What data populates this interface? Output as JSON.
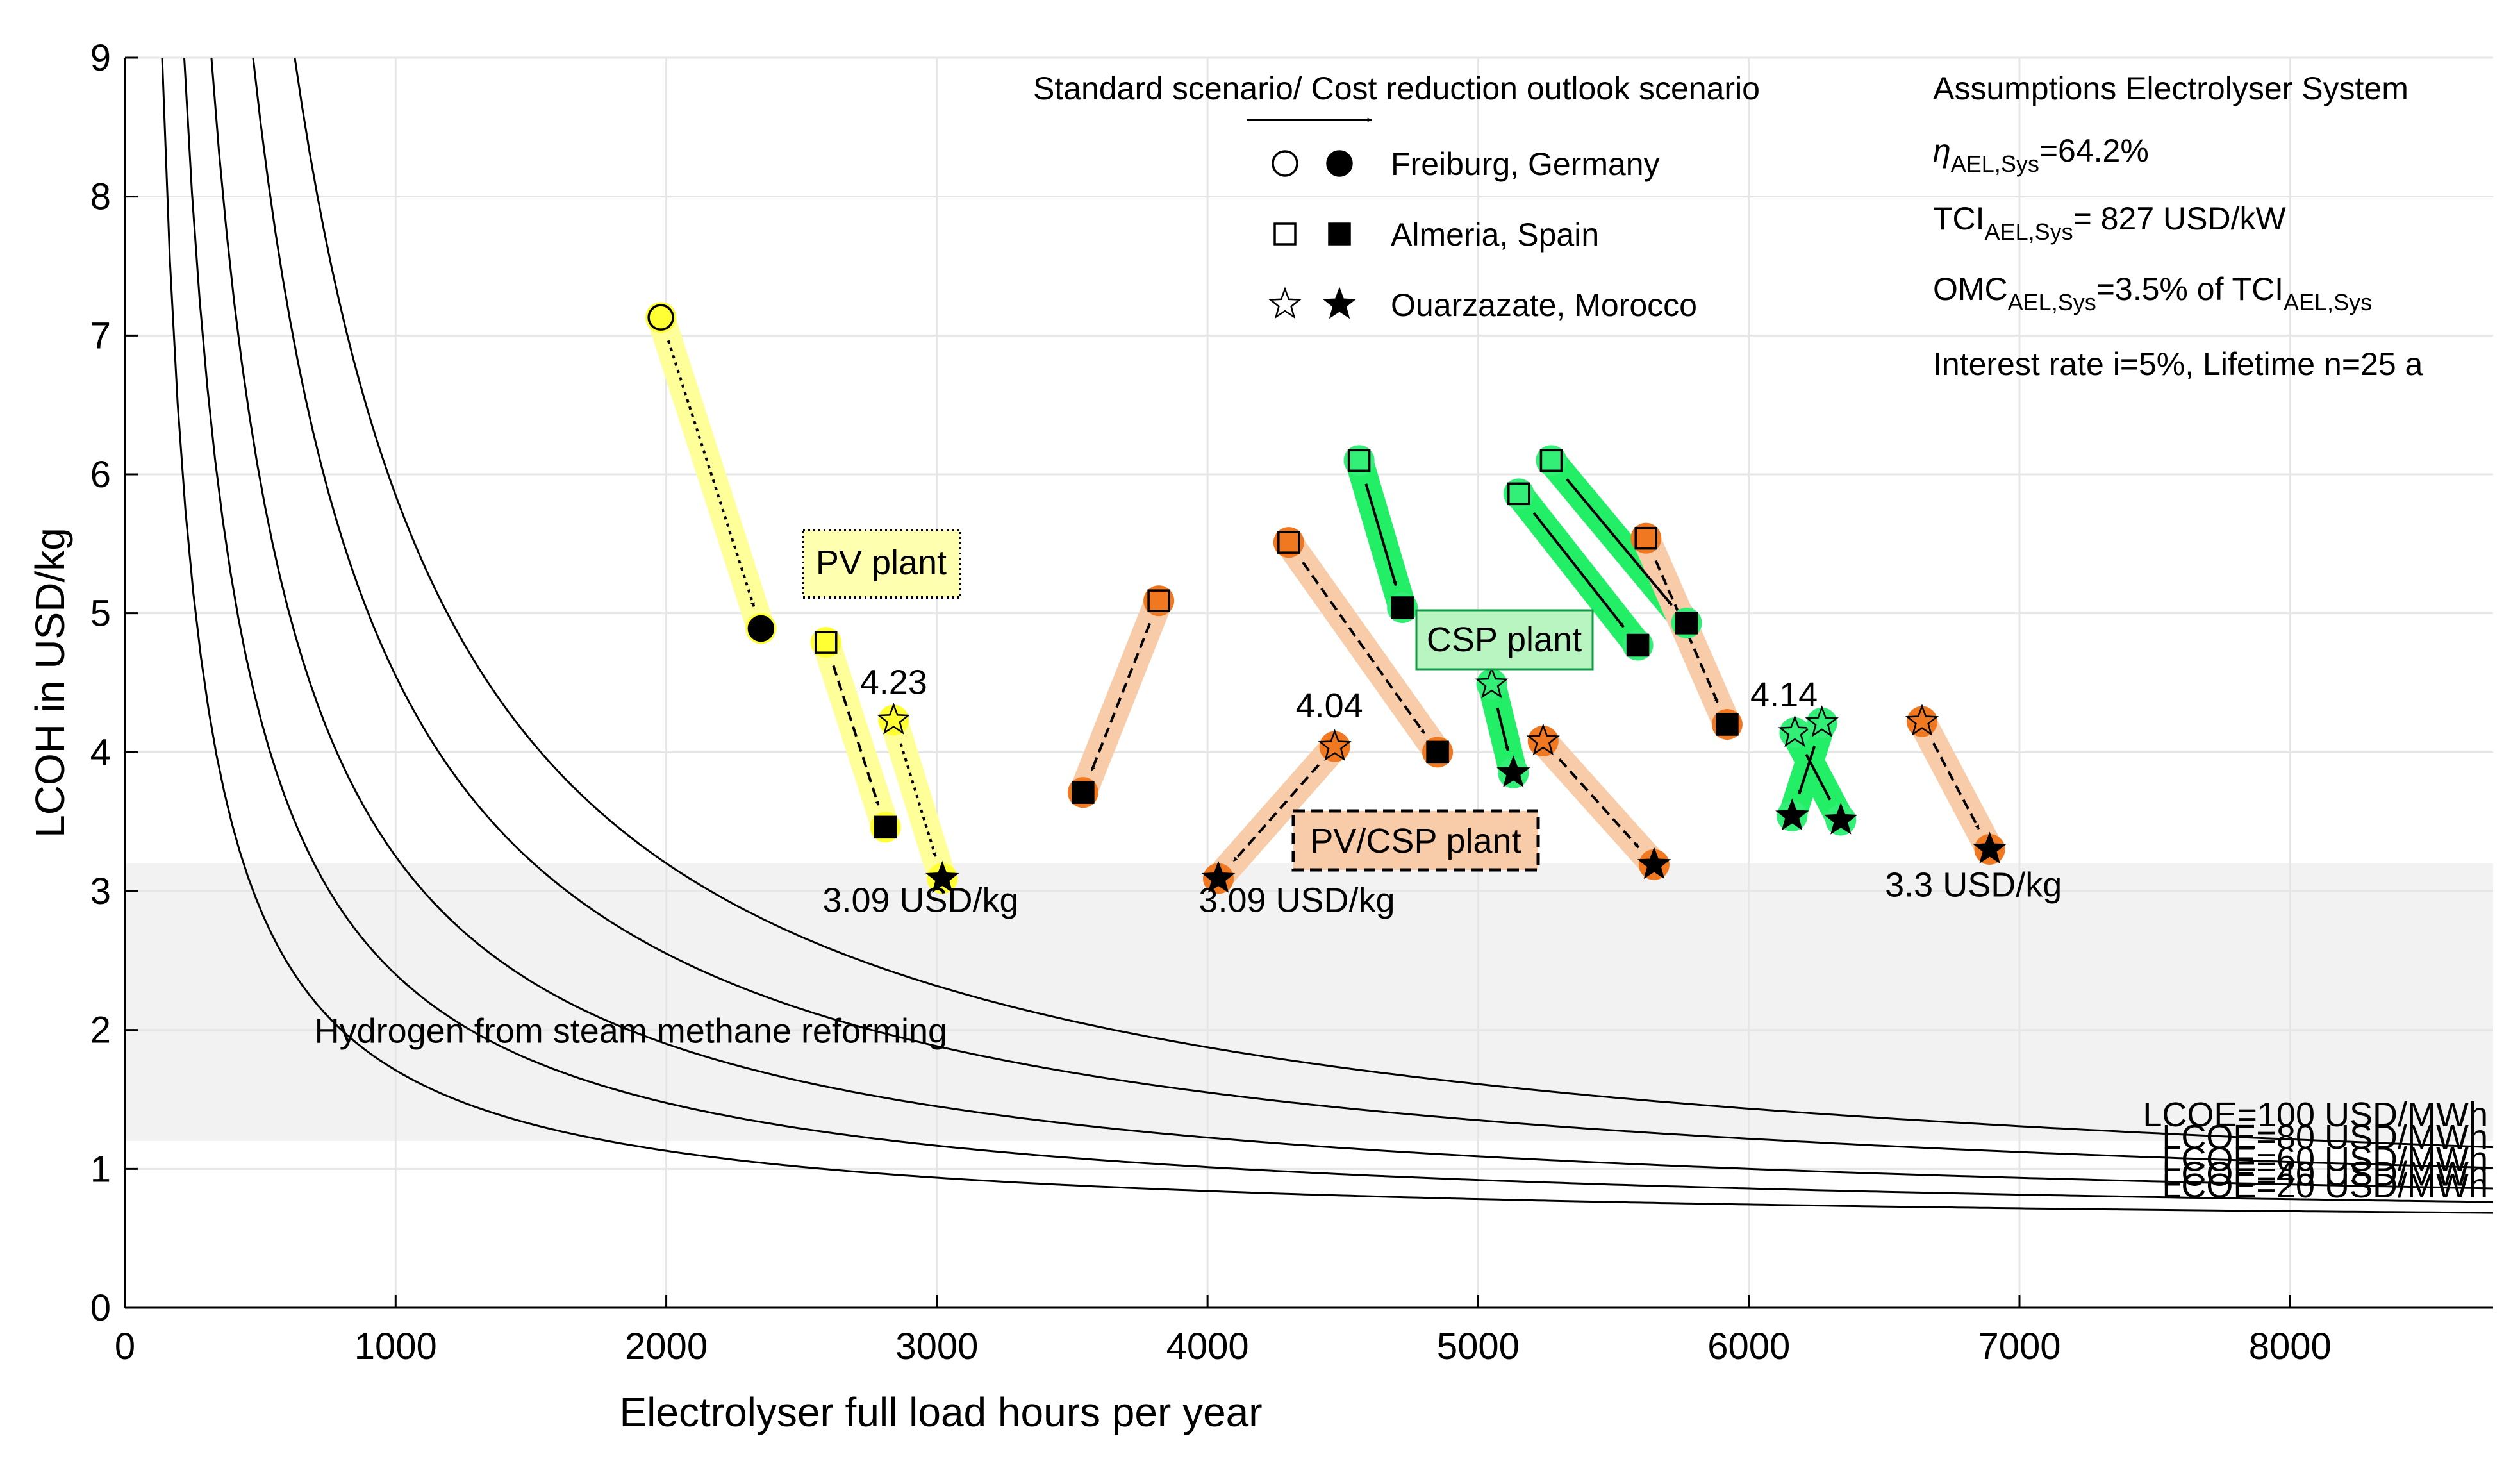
{
  "chart_data": {
    "type": "scatter",
    "xlabel": "Electrolyser full load hours per year",
    "ylabel": "LCOH in USD/kg",
    "xlim": [
      0,
      8750
    ],
    "ylim": [
      0,
      9
    ],
    "xticks": [
      0,
      1000,
      2000,
      3000,
      4000,
      5000,
      6000,
      7000,
      8000
    ],
    "yticks": [
      0,
      1,
      2,
      3,
      4,
      5,
      6,
      7,
      8,
      9
    ],
    "grid": true,
    "smr_band": {
      "label": "Hydrogen from steam methane reforming",
      "y_range": [
        1.2,
        3.2
      ]
    },
    "lcoe_curves": [
      {
        "label": "LCOE=100 USD/MWh",
        "a": 0.55,
        "b": 5300
      },
      {
        "label": "LCOE=80 USD/MWh",
        "a": 0.55,
        "b": 4000
      },
      {
        "label": "LCOE=60 USD/MWh",
        "a": 0.55,
        "b": 2700
      },
      {
        "label": "LCOE=40 USD/MWh",
        "a": 0.55,
        "b": 1850
      },
      {
        "label": "LCOE=20 USD/MWh",
        "a": 0.55,
        "b": 1160
      }
    ],
    "legend": {
      "arrow_caption": "Standard scenario/ Cost reduction outlook scenario",
      "entries": [
        {
          "marker": "circle",
          "label": "Freiburg, Germany"
        },
        {
          "marker": "square",
          "label": "Almeria, Spain"
        },
        {
          "marker": "star",
          "label": "Ouarzazate, Morocco"
        }
      ]
    },
    "assumptions": {
      "title": "Assumptions Electrolyser System",
      "efficiency": {
        "symbol": "η",
        "sub": "AEL,Sys",
        "value": "=64.2%"
      },
      "tci": {
        "main": "TCI",
        "sub": "AEL,Sys",
        "value": "= 827 USD/kW"
      },
      "omc": {
        "main": "OMC",
        "sub": "AEL,Sys",
        "mid": "=3.5% of TCI",
        "sub2": "AEL,Sys"
      },
      "finance": "Interest rate i=5%, Lifetime n=25 a"
    },
    "plant_boxes": {
      "pv": "PV plant",
      "csp": "CSP plant",
      "pvcsp": "PV/CSP plant"
    },
    "colors": {
      "pv": "#ffff33",
      "pv_band": "#ffff99",
      "csp": "#33ee77",
      "csp_band": "#22ee66",
      "pvcsp": "#f07820",
      "pvcsp_band": "#f8cca8",
      "smr": "#f2f2f2",
      "grid": "#e6e6e6"
    },
    "series": [
      {
        "name": "PV Freiburg",
        "group": "pv",
        "marker": "circle",
        "from": [
          1980,
          7.13
        ],
        "to": [
          2350,
          4.89
        ],
        "style": "dotted"
      },
      {
        "name": "PV Almeria",
        "group": "pv",
        "marker": "square",
        "from": [
          2590,
          4.79
        ],
        "to": [
          2810,
          3.46
        ],
        "style": "dashed"
      },
      {
        "name": "PV Ouarzazate",
        "group": "pv",
        "marker": "star",
        "from": [
          2840,
          4.23
        ],
        "to": [
          3020,
          3.09
        ],
        "style": "dotted"
      },
      {
        "name": "CSP Almeria A",
        "group": "csp",
        "marker": "square",
        "from": [
          4560,
          6.1
        ],
        "to": [
          4720,
          5.04
        ],
        "style": "solid"
      },
      {
        "name": "CSP Almeria B",
        "group": "csp",
        "marker": "square",
        "from": [
          5150,
          5.86
        ],
        "to": [
          5590,
          4.77
        ],
        "style": "solid"
      },
      {
        "name": "CSP Almeria C",
        "group": "csp",
        "marker": "square",
        "from": [
          5270,
          6.1
        ],
        "to": [
          5770,
          4.93
        ],
        "style": "solid"
      },
      {
        "name": "CSP Ouarzazate A",
        "group": "csp",
        "marker": "star",
        "from": [
          5050,
          4.49
        ],
        "to": [
          5130,
          3.85
        ],
        "style": "solid"
      },
      {
        "name": "CSP Ouarzazate B",
        "group": "csp",
        "marker": "star",
        "from": [
          6170,
          4.14
        ],
        "to": [
          6340,
          3.51
        ],
        "style": "solid"
      },
      {
        "name": "CSP Ouarzazate C",
        "group": "csp",
        "marker": "star",
        "from": [
          6270,
          4.21
        ],
        "to": [
          6160,
          3.54
        ],
        "style": "solid"
      },
      {
        "name": "PV/CSP Almeria A",
        "group": "pvcsp",
        "marker": "square",
        "from": [
          3820,
          5.09
        ],
        "to": [
          3540,
          3.71
        ],
        "style": "dashed"
      },
      {
        "name": "PV/CSP Almeria B",
        "group": "pvcsp",
        "marker": "square",
        "from": [
          4300,
          5.51
        ],
        "to": [
          4850,
          4.0
        ],
        "style": "dashed"
      },
      {
        "name": "PV/CSP Almeria C",
        "group": "pvcsp",
        "marker": "square",
        "from": [
          5620,
          5.54
        ],
        "to": [
          5920,
          4.2
        ],
        "style": "dashed"
      },
      {
        "name": "PV/CSP Ouarzazate A",
        "group": "pvcsp",
        "marker": "star",
        "from": [
          4470,
          4.04
        ],
        "to": [
          4040,
          3.09
        ],
        "style": "dashed"
      },
      {
        "name": "PV/CSP Ouarzazate B",
        "group": "pvcsp",
        "marker": "star",
        "from": [
          5240,
          4.08
        ],
        "to": [
          5650,
          3.19
        ],
        "style": "dashed"
      },
      {
        "name": "PV/CSP Ouarzazate C",
        "group": "pvcsp",
        "marker": "star",
        "from": [
          6640,
          4.22
        ],
        "to": [
          6890,
          3.3
        ],
        "style": "dashed"
      }
    ],
    "annotations": [
      {
        "text": "4.23",
        "x": 2840,
        "y": 4.42,
        "anchor": "middle"
      },
      {
        "text": "3.09 USD/kg",
        "x": 2940,
        "y": 2.85,
        "anchor": "middle"
      },
      {
        "text": "4.04",
        "x": 4450,
        "y": 4.25,
        "anchor": "middle"
      },
      {
        "text": "3.09 USD/kg",
        "x": 4330,
        "y": 2.85,
        "anchor": "middle"
      },
      {
        "text": "4.14",
        "x": 6130,
        "y": 4.33,
        "anchor": "middle"
      },
      {
        "text": "3.3 USD/kg",
        "x": 6830,
        "y": 2.96,
        "anchor": "middle"
      }
    ]
  }
}
